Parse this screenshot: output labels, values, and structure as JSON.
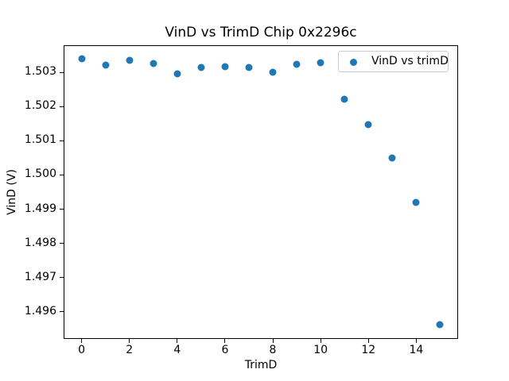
{
  "chart_data": {
    "type": "scatter",
    "title": "VinD vs TrimD Chip 0x2296c",
    "xlabel": "TrimD",
    "ylabel": "VinD (V)",
    "legend": {
      "label": "VinD vs trimD",
      "position": "upper right"
    },
    "x": [
      0,
      1,
      2,
      3,
      4,
      5,
      6,
      7,
      8,
      9,
      10,
      11,
      12,
      13,
      14,
      15
    ],
    "y": [
      1.50339,
      1.5032,
      1.50335,
      1.50325,
      1.50295,
      1.50314,
      1.50316,
      1.50313,
      1.50299,
      1.50323,
      1.50329,
      1.50221,
      1.50147,
      1.50049,
      1.49919,
      1.49563
    ],
    "xlim": [
      -0.75,
      15.75
    ],
    "ylim": [
      1.49521,
      1.50379
    ],
    "xticks": [
      0,
      2,
      4,
      6,
      8,
      10,
      12,
      14
    ],
    "yticks": [
      1.496,
      1.497,
      1.498,
      1.499,
      1.5,
      1.501,
      1.502,
      1.503
    ],
    "ytick_decimals": 3,
    "marker_color": "#1f77b4",
    "grid": false,
    "background": "#ffffff"
  }
}
